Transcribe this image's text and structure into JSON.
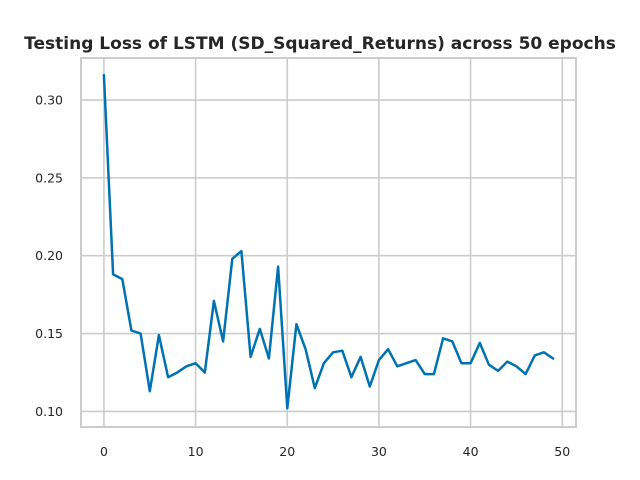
{
  "chart_data": {
    "type": "line",
    "title": "Testing Loss of LSTM (SD_Squared_Returns) across 50 epochs",
    "xlabel": "",
    "ylabel": "",
    "xlim": [
      -2.5,
      51.5
    ],
    "ylim": [
      0.09,
      0.327
    ],
    "xticks": [
      0,
      10,
      20,
      30,
      40,
      50
    ],
    "yticks": [
      0.1,
      0.15,
      0.2,
      0.25,
      0.3
    ],
    "ytick_labels": [
      "0.10",
      "0.15",
      "0.20",
      "0.25",
      "0.30"
    ],
    "grid": true,
    "color": "#0072b2",
    "series": [
      {
        "x": [
          0,
          1,
          2,
          3,
          4,
          5,
          6,
          7,
          8,
          9,
          10,
          11,
          12,
          13,
          14,
          15,
          16,
          17,
          18,
          19,
          20,
          21,
          22,
          23,
          24,
          25,
          26,
          27,
          28,
          29,
          30,
          31,
          32,
          33,
          34,
          35,
          36,
          37,
          38,
          39,
          40,
          41,
          42,
          43,
          44,
          45,
          46,
          47,
          48,
          49
        ],
        "values": [
          0.316,
          0.188,
          0.185,
          0.152,
          0.15,
          0.113,
          0.149,
          0.122,
          0.125,
          0.129,
          0.131,
          0.125,
          0.171,
          0.145,
          0.198,
          0.203,
          0.135,
          0.153,
          0.134,
          0.193,
          0.102,
          0.156,
          0.14,
          0.115,
          0.131,
          0.138,
          0.139,
          0.122,
          0.135,
          0.116,
          0.133,
          0.14,
          0.129,
          0.131,
          0.133,
          0.124,
          0.124,
          0.147,
          0.145,
          0.131,
          0.131,
          0.144,
          0.13,
          0.126,
          0.132,
          0.129,
          0.124,
          0.136,
          0.138,
          0.134
        ]
      }
    ]
  }
}
